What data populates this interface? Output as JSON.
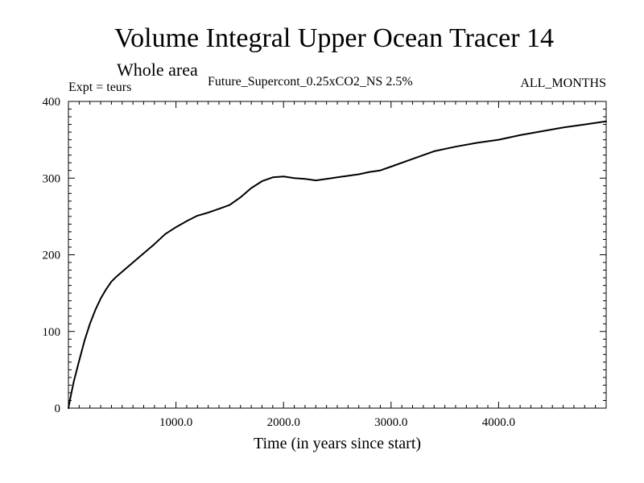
{
  "chart_data": {
    "type": "line",
    "title": "Volume Integral Upper Ocean Tracer 14",
    "subtitle": "Whole area",
    "experiment_label": "Expt = teurs",
    "run_label": "Future_Supercont_0.25xCO2_NS 2.5%",
    "months_label": "ALL_MONTHS",
    "xlabel": "Time (in years since start)",
    "ylabel": "",
    "xlim": [
      0,
      5000
    ],
    "ylim": [
      0,
      400
    ],
    "x_ticks": [
      1000,
      2000,
      3000,
      4000
    ],
    "x_tick_labels": [
      "1000.0",
      "2000.0",
      "3000.0",
      "4000.0"
    ],
    "y_ticks": [
      0,
      100,
      200,
      300,
      400
    ],
    "y_tick_labels": [
      "0",
      "100",
      "200",
      "300",
      "400"
    ],
    "grid": false,
    "legend": false,
    "series": [
      {
        "color": "#000000",
        "x": [
          0,
          25,
          50,
          100,
          150,
          200,
          250,
          300,
          350,
          400,
          450,
          500,
          600,
          700,
          800,
          900,
          1000,
          1100,
          1200,
          1300,
          1400,
          1500,
          1600,
          1700,
          1800,
          1900,
          2000,
          2100,
          2200,
          2300,
          2400,
          2500,
          2600,
          2700,
          2800,
          2900,
          3000,
          3200,
          3400,
          3600,
          3800,
          4000,
          4200,
          4400,
          4600,
          4800,
          5000
        ],
        "y": [
          0,
          18,
          35,
          62,
          88,
          110,
          128,
          143,
          155,
          165,
          172,
          178,
          190,
          202,
          214,
          227,
          236,
          244,
          251,
          255,
          260,
          265,
          275,
          287,
          296,
          301,
          302,
          300,
          299,
          297,
          299,
          301,
          303,
          305,
          308,
          310,
          315,
          325,
          335,
          341,
          346,
          350,
          356,
          361,
          366,
          370,
          374
        ]
      }
    ]
  }
}
